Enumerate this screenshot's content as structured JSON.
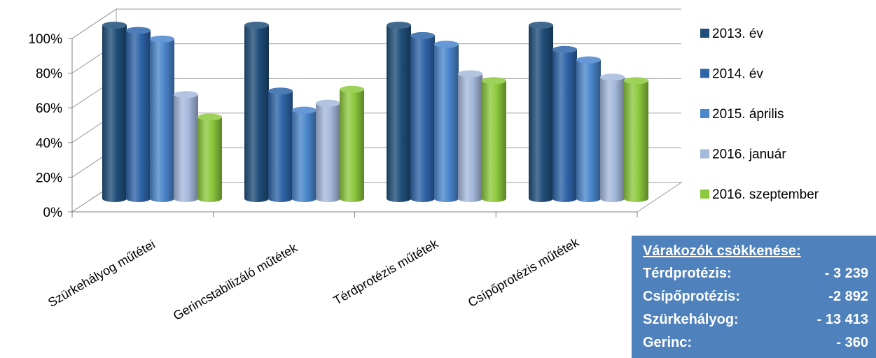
{
  "chart_data": {
    "type": "bar",
    "style": "3d-clustered-cylinder",
    "categories": [
      "Szürkehályog műtétei",
      "Gerincstabilizáló műtétek",
      "Térdprotézis műtétek",
      "Csípőprotézis műtétek"
    ],
    "series": [
      {
        "name": "2013. év",
        "color": "#1f4e79",
        "values": [
          100,
          100,
          100,
          100
        ]
      },
      {
        "name": "2014. év",
        "color": "#2e64a8",
        "values": [
          97,
          62,
          94,
          86
        ]
      },
      {
        "name": "2015. április",
        "color": "#4a86cc",
        "values": [
          92,
          51,
          89,
          80
        ]
      },
      {
        "name": "2016. január",
        "color": "#a5b9dc",
        "values": [
          60,
          55,
          72,
          70
        ]
      },
      {
        "name": "2016. szeptember",
        "color": "#8dc93d",
        "values": [
          47,
          63,
          68,
          68
        ]
      }
    ],
    "y_ticks": [
      "0%",
      "20%",
      "40%",
      "60%",
      "80%",
      "100%"
    ],
    "ylim": [
      0,
      100
    ],
    "grid": true,
    "legend_position": "right"
  },
  "info_box": {
    "title": "Várakozók csökkenése:",
    "rows": [
      {
        "label": "Térdprotézis:",
        "value": "- 3 239"
      },
      {
        "label": "Csípőprotézis:",
        "value": "-2 892"
      },
      {
        "label": "Szürkehályog:",
        "value": "- 13 413"
      },
      {
        "label": "Gerinc:",
        "value": "- 360"
      }
    ]
  }
}
